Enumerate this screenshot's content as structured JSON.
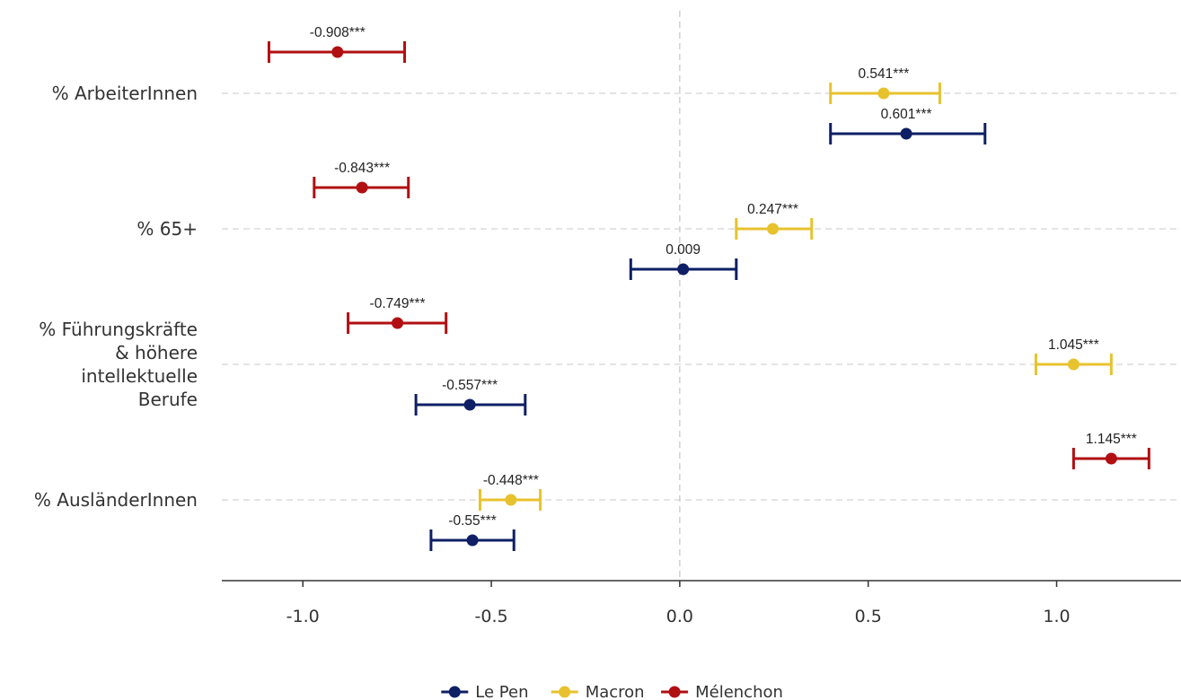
{
  "chart_data": {
    "type": "scatter",
    "subtype": "coefficient-plot-with-error-bars",
    "orientation": "horizontal",
    "categories": [
      "% ArbeiterInnen",
      "% 65+",
      "% Führungskräfte & höhere intellektuelle Berufe",
      "% AusländerInnen"
    ],
    "category_lines": [
      [
        "% ArbeiterInnen"
      ],
      [
        "% 65+"
      ],
      [
        "% Führungskräfte",
        "& höhere",
        "intellektuelle",
        "Berufe"
      ],
      [
        "% AusländerInnen"
      ]
    ],
    "series": [
      {
        "name": "Mélenchon",
        "color": "#b10f12",
        "points": [
          {
            "estimate": -0.908,
            "low": -1.09,
            "high": -0.73,
            "label": "-0.908***"
          },
          {
            "estimate": -0.843,
            "low": -0.97,
            "high": -0.72,
            "label": "-0.843***"
          },
          {
            "estimate": -0.749,
            "low": -0.88,
            "high": -0.62,
            "label": "-0.749***"
          },
          {
            "estimate": 1.145,
            "low": 1.045,
            "high": 1.245,
            "label": "1.145***"
          }
        ]
      },
      {
        "name": "Macron",
        "color": "#e8c22e",
        "points": [
          {
            "estimate": 0.541,
            "low": 0.4,
            "high": 0.69,
            "label": "0.541***"
          },
          {
            "estimate": 0.247,
            "low": 0.15,
            "high": 0.35,
            "label": "0.247***"
          },
          {
            "estimate": 1.045,
            "low": 0.945,
            "high": 1.145,
            "label": "1.045***"
          },
          {
            "estimate": -0.448,
            "low": -0.53,
            "high": -0.37,
            "label": "-0.448***"
          }
        ]
      },
      {
        "name": "Le Pen",
        "color": "#0e1f66",
        "points": [
          {
            "estimate": 0.601,
            "low": 0.4,
            "high": 0.81,
            "label": "0.601***"
          },
          {
            "estimate": 0.009,
            "low": -0.13,
            "high": 0.15,
            "label": "0.009"
          },
          {
            "estimate": -0.557,
            "low": -0.7,
            "high": -0.41,
            "label": "-0.557***"
          },
          {
            "estimate": -0.55,
            "low": -0.66,
            "high": -0.44,
            "label": "-0.55***"
          }
        ]
      }
    ],
    "x_ticks": [
      -1.0,
      -0.5,
      0.0,
      0.5,
      1.0
    ],
    "x_tick_labels": [
      "-1.0",
      "-0.5",
      "0.0",
      "0.5",
      "1.0"
    ],
    "xlim": [
      -1.215,
      1.33
    ],
    "reference_line": 0,
    "grid": "horizontal dashed at categories",
    "legend": {
      "position": "bottom",
      "entries": [
        "Le Pen",
        "Macron",
        "Mélenchon"
      ]
    },
    "title": "",
    "xlabel": "",
    "ylabel": ""
  }
}
